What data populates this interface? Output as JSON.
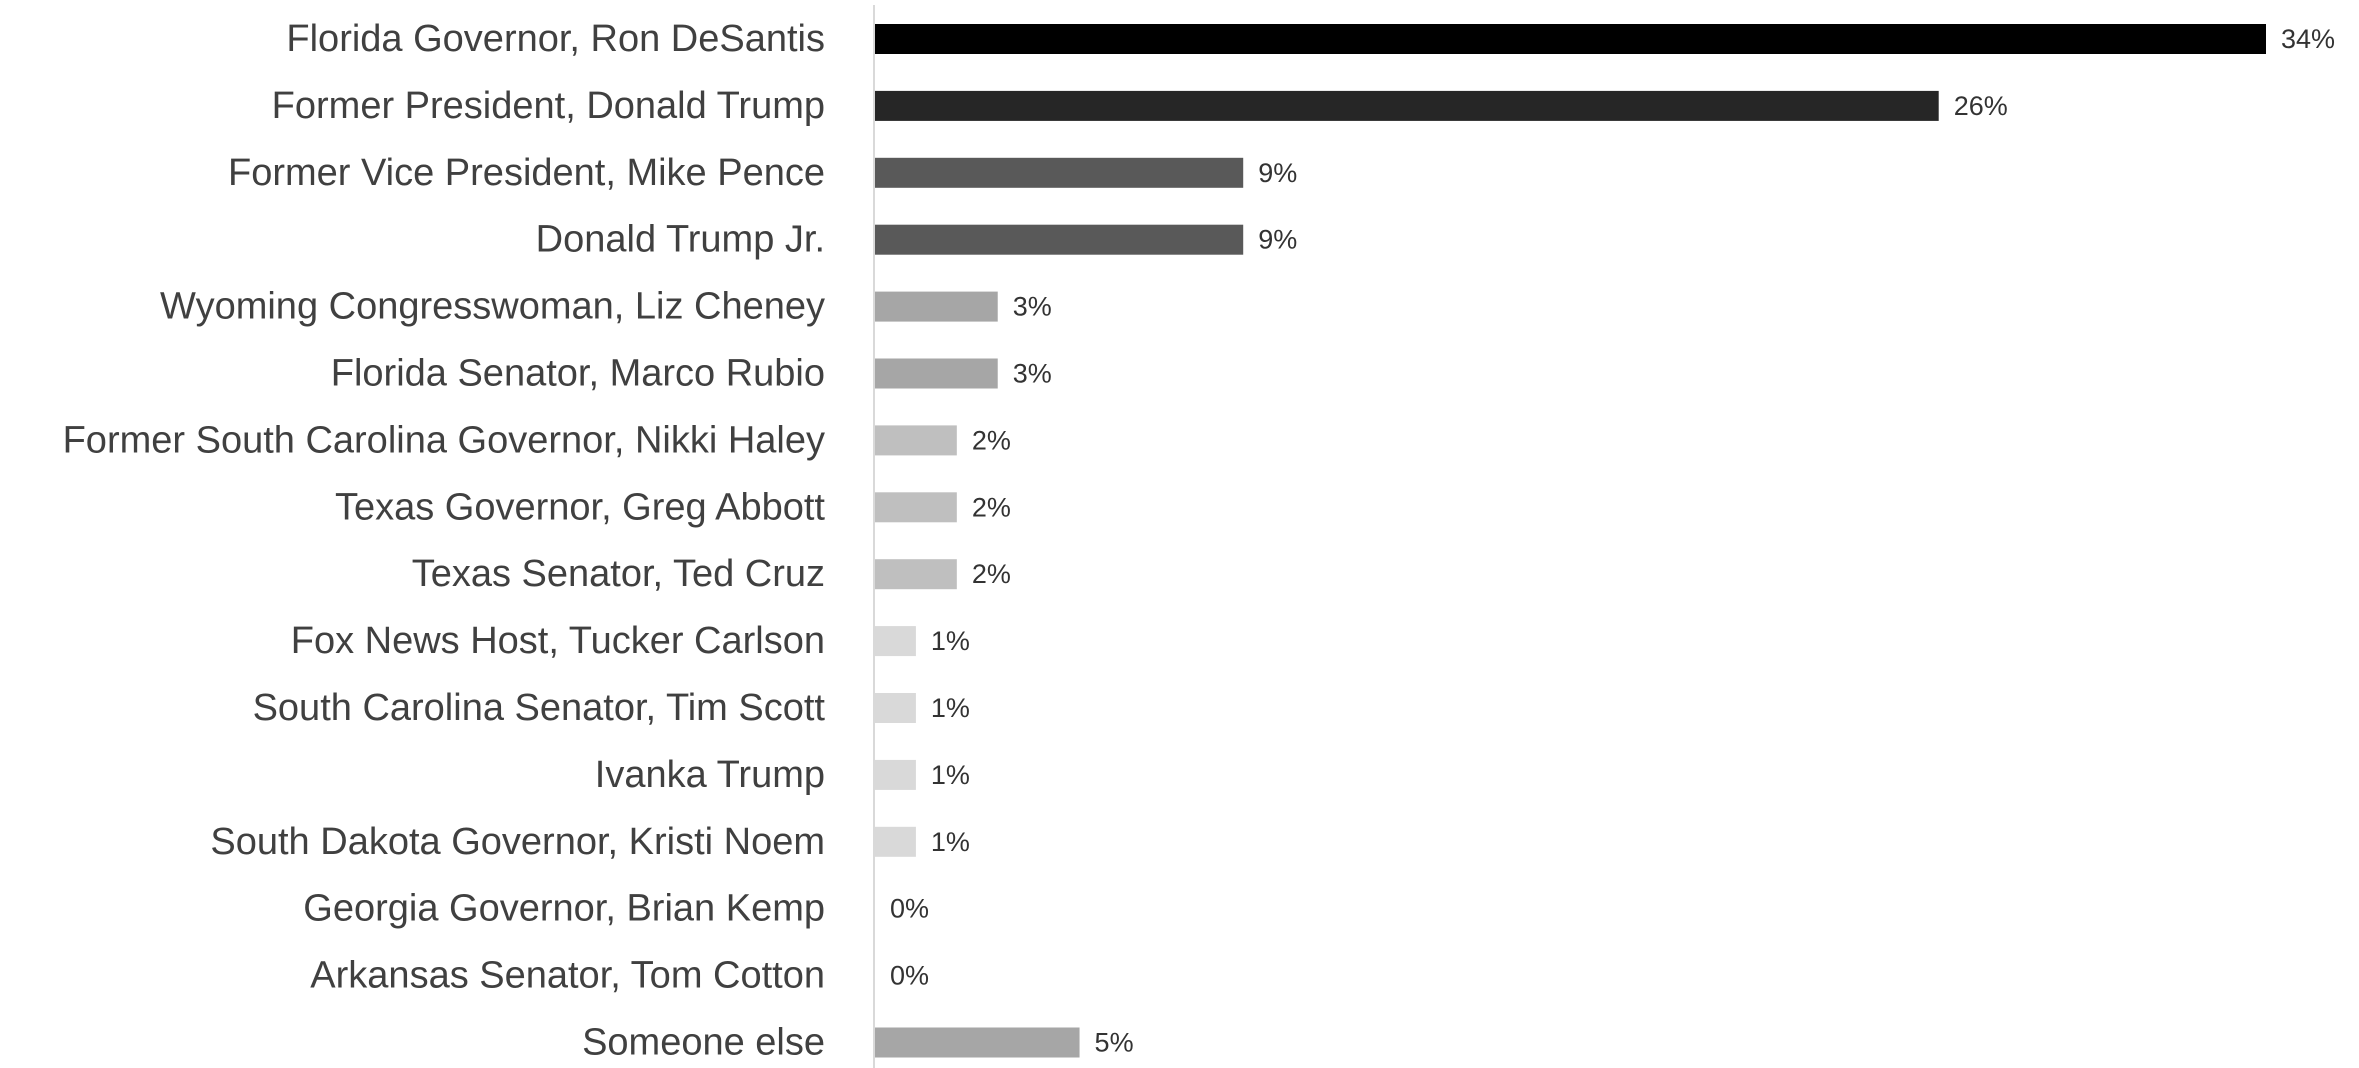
{
  "chart_data": {
    "type": "bar",
    "orientation": "horizontal",
    "title": "",
    "xlabel": "",
    "ylabel": "",
    "grid": false,
    "legend": "none",
    "xlim": [
      0,
      34
    ],
    "categories": [
      "Florida Governor, Ron DeSantis",
      "Former President, Donald Trump",
      "Former Vice President, Mike Pence",
      "Donald Trump Jr.",
      "Wyoming Congresswoman, Liz Cheney",
      "Florida Senator, Marco Rubio",
      "Former South Carolina Governor, Nikki Haley",
      "Texas Governor, Greg Abbott",
      "Texas Senator, Ted Cruz",
      "Fox News Host, Tucker Carlson",
      "South Carolina Senator, Tim Scott",
      "Ivanka Trump",
      "South Dakota Governor, Kristi Noem",
      "Georgia Governor, Brian Kemp",
      "Arkansas Senator, Tom Cotton",
      "Someone else"
    ],
    "values": [
      34,
      26,
      9,
      9,
      3,
      3,
      2,
      2,
      2,
      1,
      1,
      1,
      1,
      0,
      0,
      5
    ],
    "value_labels": [
      "34%",
      "26%",
      "9%",
      "9%",
      "3%",
      "3%",
      "2%",
      "2%",
      "2%",
      "1%",
      "1%",
      "1%",
      "1%",
      "0%",
      "0%",
      "5%"
    ],
    "bar_colors": [
      "#000000",
      "#262626",
      "#595959",
      "#595959",
      "#a6a6a6",
      "#a6a6a6",
      "#bfbfbf",
      "#bfbfbf",
      "#bfbfbf",
      "#d9d9d9",
      "#d9d9d9",
      "#d9d9d9",
      "#d9d9d9",
      "#d9d9d9",
      "#d9d9d9",
      "#a6a6a6"
    ],
    "axis_color": "#d9d9d9"
  }
}
